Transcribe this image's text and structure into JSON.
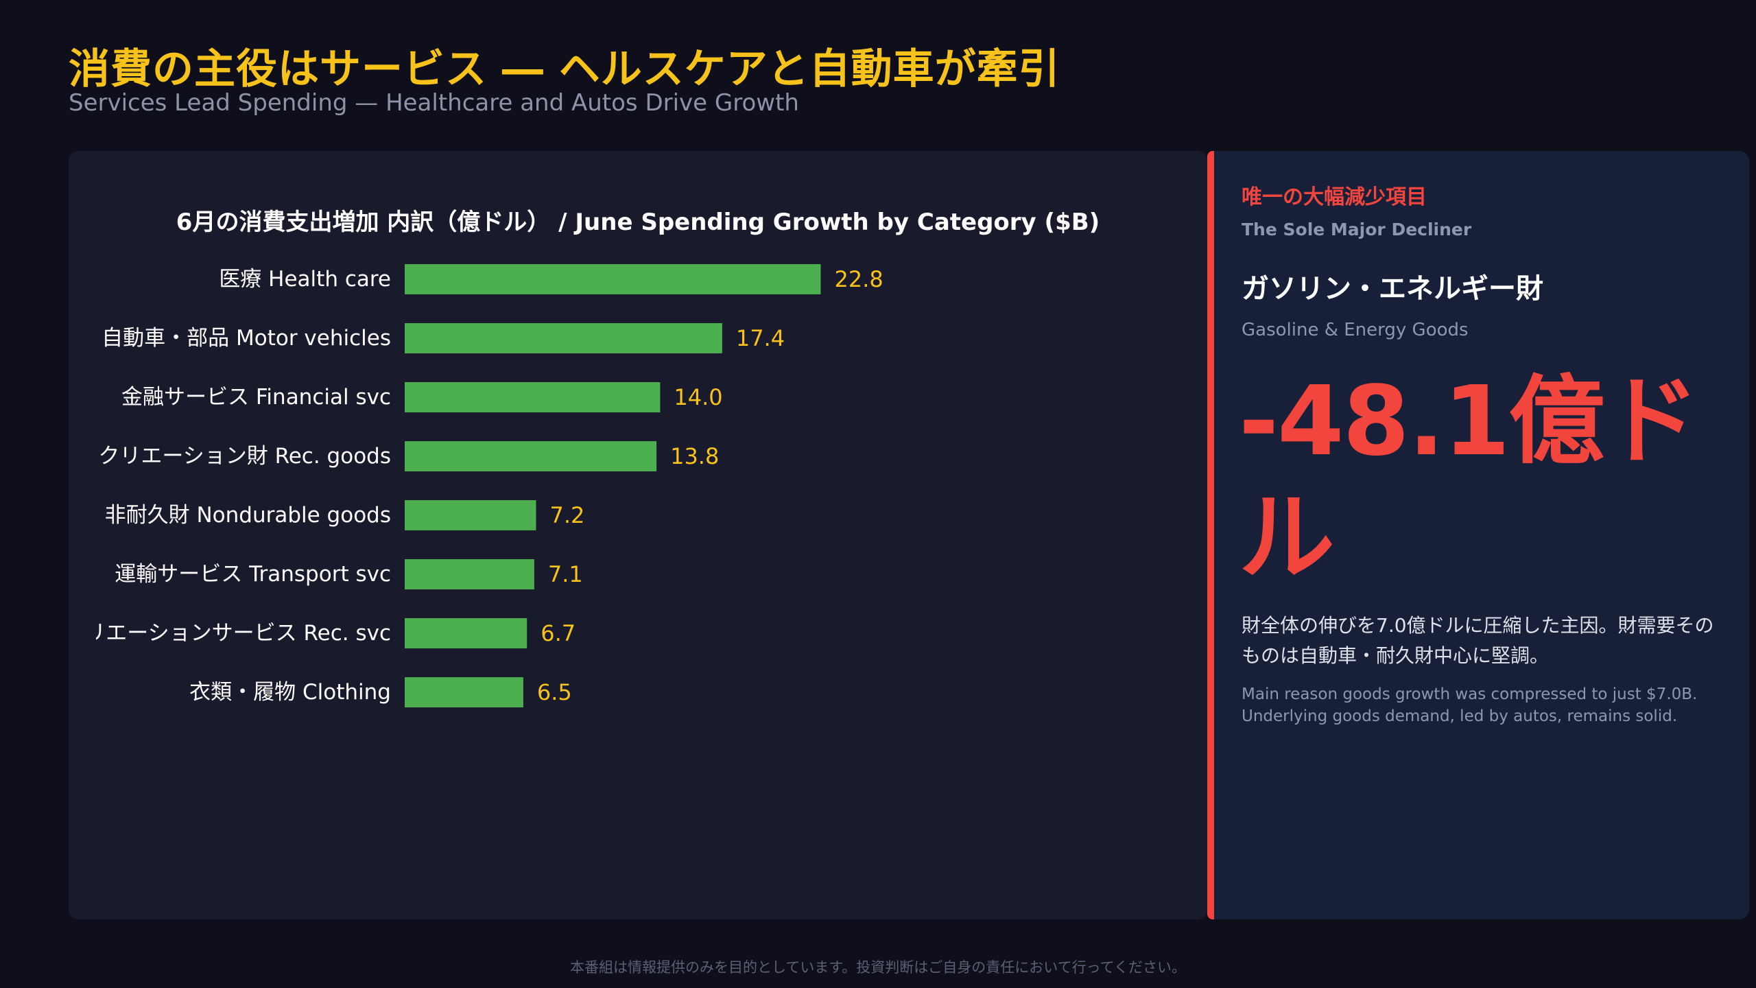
{
  "header": {
    "title": "消費の主役はサービス ― ヘルスケアと自動車が牽引",
    "subtitle": "Services Lead Spending — Healthcare and Autos Drive Growth"
  },
  "chart_data": {
    "type": "bar",
    "orientation": "horizontal",
    "title": "6月の消費支出増加 内訳（億ドル） / June Spending Growth by Category ($B)",
    "categories": [
      "医療 Health care",
      "自動車・部品 Motor vehicles",
      "金融サービス Financial svc",
      "クリエーション財 Rec. goods",
      "非耐久財 Nondurable goods",
      "運輸サービス Transport svc",
      "リエーションサービス Rec. svc",
      "衣類・履物 Clothing"
    ],
    "values": [
      22.8,
      17.4,
      14.0,
      13.8,
      7.2,
      7.1,
      6.7,
      6.5
    ],
    "value_labels": [
      "22.8",
      "17.4",
      "14.0",
      "13.8",
      "7.2",
      "7.1",
      "6.7",
      "6.5"
    ],
    "xlim": [
      0,
      50
    ],
    "grid": false,
    "bar_color": "#4caf50",
    "label_color": "#f7c21a"
  },
  "side_panel": {
    "kicker": "唯一の大幅減少項目",
    "kicker_en": "The Sole Major Decliner",
    "item": "ガソリン・エネルギー財",
    "item_en": "Gasoline & Energy Goods",
    "value": "-48.1億ドル",
    "description": "財全体の伸びを7.0億ドルに圧縮した主因。財需要そのものは自動車・耐久財中心に堅調。",
    "description_en": "Main reason goods growth was compressed to just $7.0B. Underlying goods demand, led by autos, remains solid.",
    "accent_color": "#f2453d"
  },
  "footer": {
    "disclaimer": "本番組は情報提供のみを目的としています。投資判断はご自身の責任において行ってください。"
  }
}
